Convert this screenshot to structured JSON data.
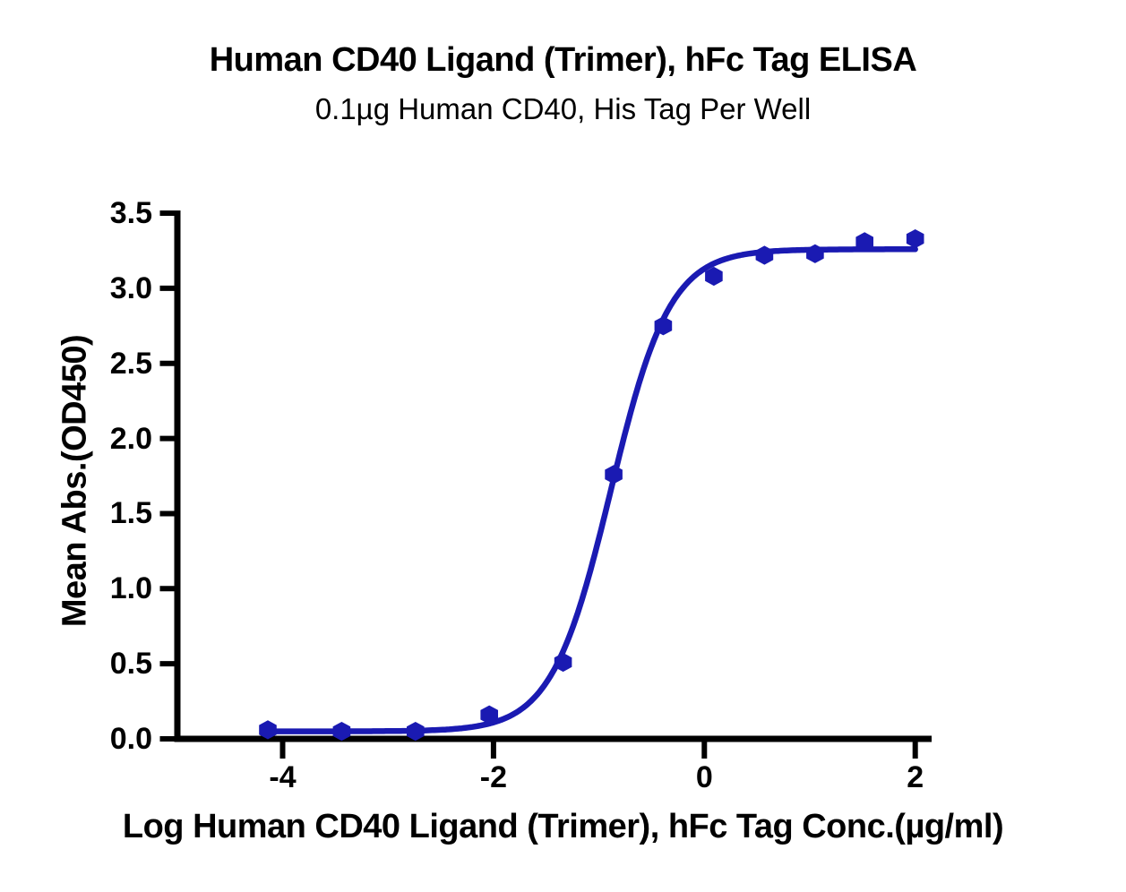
{
  "chart_data": {
    "type": "scatter",
    "title": "Human CD40 Ligand (Trimer), hFc Tag ELISA",
    "subtitle": "0.1µg Human CD40, His Tag Per Well",
    "xlabel": "Log Human CD40 Ligand (Trimer), hFc Tag Conc.(µg/ml)",
    "ylabel": "Mean Abs.(OD450)",
    "xlim": [
      -4.9,
      2.15
    ],
    "ylim": [
      0,
      3.5
    ],
    "grid": false,
    "legend": "none",
    "accent_color": "#1a1ab2",
    "axis_color": "#000000",
    "x_ticks": [
      {
        "value": -4,
        "label": "-4"
      },
      {
        "value": -2,
        "label": "-2"
      },
      {
        "value": 0,
        "label": "0"
      },
      {
        "value": 2,
        "label": "2"
      }
    ],
    "y_ticks": [
      {
        "value": 0.0,
        "label": "0.0"
      },
      {
        "value": 0.5,
        "label": "0.5"
      },
      {
        "value": 1.0,
        "label": "1.0"
      },
      {
        "value": 1.5,
        "label": "1.5"
      },
      {
        "value": 2.0,
        "label": "2.0"
      },
      {
        "value": 2.5,
        "label": "2.5"
      },
      {
        "value": 3.0,
        "label": "3.0"
      },
      {
        "value": 3.5,
        "label": "3.5"
      }
    ],
    "series": [
      {
        "name": "Human CD40 Ligand (Trimer), hFc Tag",
        "marker": "hexagon",
        "color": "#1a1ab2",
        "points": [
          [
            -4.14,
            0.06
          ],
          [
            -3.44,
            0.05
          ],
          [
            -2.74,
            0.05
          ],
          [
            -2.04,
            0.16
          ],
          [
            -1.34,
            0.51
          ],
          [
            -0.86,
            1.76
          ],
          [
            -0.39,
            2.75
          ],
          [
            0.09,
            3.08
          ],
          [
            0.57,
            3.22
          ],
          [
            1.05,
            3.23
          ],
          [
            1.52,
            3.31
          ],
          [
            2.0,
            3.33
          ]
        ]
      }
    ],
    "fit_curve": {
      "model": "4PL",
      "bottom": 0.05,
      "top": 3.26,
      "log_ec50": -0.887,
      "hill_slope": 1.55,
      "x_range": [
        -4.14,
        2.0
      ]
    }
  }
}
